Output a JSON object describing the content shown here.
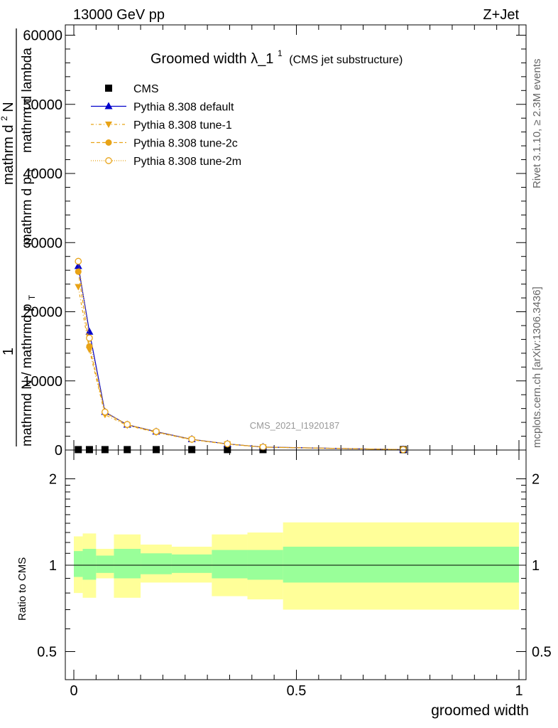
{
  "header": {
    "left": "13000 GeV pp",
    "right": "Z+Jet"
  },
  "side_labels": {
    "rivet": "Rivet 3.1.10, ≥ 2.3M events",
    "mcplots": "mcplots.cern.ch [arXiv:1306.3436]"
  },
  "watermark": "CMS_2021_I1920187",
  "colors": {
    "cms": "#000000",
    "default": "#0000cc",
    "tune": "#e8a317",
    "band_inner": "#99ff99",
    "band_outer": "#ffff99"
  },
  "chart_data": [
    {
      "type": "line",
      "title": "Groomed width",
      "title_math": "λ_1",
      "title_sup": "1",
      "title_suffix": "(CMS jet substructure)",
      "ylabel_parts": {
        "frac_one": "1",
        "den": "mathrmd N / mathrmd p",
        "den_sub": "T",
        "num_a": "mathrm d",
        "num_sup": "2",
        "num_b": "N",
        "num_c": "mathrm d p",
        "num_c_sub": "T",
        "num_d": "mathrm d lambda"
      },
      "xlim": [
        0,
        1
      ],
      "ylim": [
        0,
        60000
      ],
      "yticks": [
        0,
        10000,
        20000,
        30000,
        40000,
        50000,
        60000
      ],
      "ytick_labels": [
        "0",
        "10000",
        "20000",
        "30000",
        "40000",
        "50000",
        "60000"
      ],
      "legend_position": "top-left",
      "x": [
        0.01,
        0.035,
        0.07,
        0.12,
        0.185,
        0.265,
        0.345,
        0.425,
        0.74
      ],
      "series": [
        {
          "name": "CMS",
          "key": "cms",
          "marker": "square",
          "values": [
            60,
            60,
            60,
            60,
            60,
            60,
            60,
            60,
            60
          ]
        },
        {
          "name": "Pythia 8.308 default",
          "key": "default",
          "marker": "triangle-up",
          "dash": "",
          "values": [
            26600,
            17100,
            5500,
            3650,
            2650,
            1550,
            880,
            430,
            60
          ]
        },
        {
          "name": "Pythia 8.308 tune-1",
          "key": "tune1",
          "marker": "triangle-down",
          "dash": "4,3,1,3",
          "values": [
            23600,
            14500,
            5100,
            3550,
            2550,
            1480,
            850,
            410,
            60
          ]
        },
        {
          "name": "Pythia 8.308 tune-2c",
          "key": "tune2c",
          "marker": "circle",
          "dash": "5,3",
          "values": [
            25800,
            15000,
            5400,
            3650,
            2600,
            1520,
            870,
            420,
            60
          ]
        },
        {
          "name": "Pythia 8.308 tune-2m",
          "key": "tune2m",
          "marker": "open-circle",
          "dash": "1,2",
          "values": [
            27300,
            16200,
            5500,
            3700,
            2680,
            1560,
            890,
            430,
            60
          ]
        }
      ]
    },
    {
      "type": "area",
      "xlabel": "groomed width",
      "ylabel": "Ratio to CMS",
      "xlim": [
        0,
        1
      ],
      "ylim": [
        0.4,
        2.3
      ],
      "yticks": [
        0.5,
        1,
        2
      ],
      "ytick_labels": [
        "0.5",
        "1",
        "2"
      ],
      "xticks": [
        0,
        0.5,
        1
      ],
      "xtick_labels": [
        "0",
        "0.5",
        "1"
      ],
      "bins": [
        {
          "lo": 0.0,
          "hi": 0.02,
          "inner": [
            0.91,
            1.12
          ],
          "outer": [
            0.8,
            1.26
          ]
        },
        {
          "lo": 0.02,
          "hi": 0.05,
          "inner": [
            0.89,
            1.14
          ],
          "outer": [
            0.77,
            1.29
          ]
        },
        {
          "lo": 0.05,
          "hi": 0.09,
          "inner": [
            0.94,
            1.08
          ],
          "outer": [
            0.9,
            1.14
          ]
        },
        {
          "lo": 0.09,
          "hi": 0.15,
          "inner": [
            0.9,
            1.14
          ],
          "outer": [
            0.77,
            1.28
          ]
        },
        {
          "lo": 0.15,
          "hi": 0.22,
          "inner": [
            0.93,
            1.1
          ],
          "outer": [
            0.87,
            1.18
          ]
        },
        {
          "lo": 0.22,
          "hi": 0.31,
          "inner": [
            0.94,
            1.09
          ],
          "outer": [
            0.87,
            1.16
          ]
        },
        {
          "lo": 0.31,
          "hi": 0.39,
          "inner": [
            0.9,
            1.13
          ],
          "outer": [
            0.78,
            1.28
          ]
        },
        {
          "lo": 0.39,
          "hi": 0.47,
          "inner": [
            0.89,
            1.13
          ],
          "outer": [
            0.76,
            1.3
          ]
        },
        {
          "lo": 0.47,
          "hi": 1.0,
          "inner": [
            0.87,
            1.16
          ],
          "outer": [
            0.7,
            1.41
          ]
        }
      ]
    }
  ]
}
